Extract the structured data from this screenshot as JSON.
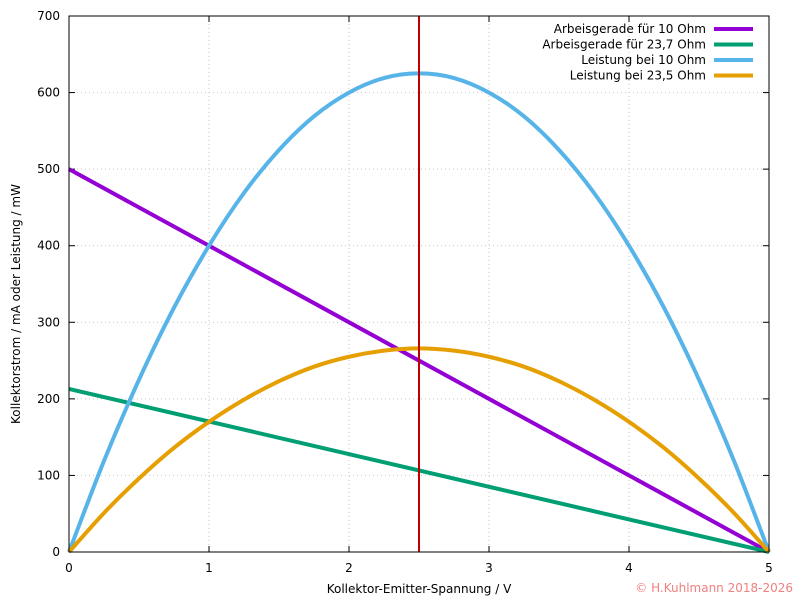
{
  "chart_data": {
    "type": "line",
    "xlabel": "Kollektor-Emitter-Spannung / V",
    "ylabel": "Kollektorstrom / mA oder Leistung / mW",
    "xlim": [
      0,
      5
    ],
    "ylim": [
      0,
      700
    ],
    "x_ticks": [
      "0",
      "1",
      "2",
      "3",
      "4",
      "5"
    ],
    "y_ticks": [
      "0",
      "100",
      "200",
      "300",
      "400",
      "500",
      "600",
      "700"
    ],
    "grid": true,
    "legend_position": "top-right",
    "vertical_marker": {
      "x": 2.5,
      "color": "#c00000"
    },
    "series": [
      {
        "name": "Arbeisgerade für 10 Ohm",
        "color": "#9400d3",
        "x": [
          0,
          5
        ],
        "y": [
          500,
          0
        ]
      },
      {
        "name": "Arbeisgerade für 23,7 Ohm",
        "color": "#009e73",
        "x": [
          0,
          5
        ],
        "y": [
          213,
          0
        ]
      },
      {
        "name": "Leistung bei 10 Ohm",
        "color": "#56b4e9",
        "x": [
          0,
          0.25,
          0.5,
          0.75,
          1,
          1.25,
          1.5,
          1.75,
          2,
          2.25,
          2.5,
          2.75,
          3,
          3.25,
          3.5,
          3.75,
          4,
          4.25,
          4.5,
          4.75,
          5
        ],
        "y": [
          0,
          119,
          225,
          319,
          400,
          469,
          525,
          569,
          600,
          619,
          625,
          619,
          600,
          569,
          525,
          469,
          400,
          319,
          225,
          119,
          0
        ]
      },
      {
        "name": "Leistung bei 23,5 Ohm",
        "color": "#e69f00",
        "x": [
          0,
          0.25,
          0.5,
          0.75,
          1,
          1.25,
          1.5,
          1.75,
          2,
          2.25,
          2.5,
          2.75,
          3,
          3.25,
          3.5,
          3.75,
          4,
          4.25,
          4.5,
          4.75,
          5
        ],
        "y": [
          0,
          51,
          96,
          136,
          170,
          199,
          223,
          242,
          255,
          263,
          266,
          263,
          255,
          242,
          223,
          199,
          170,
          136,
          96,
          51,
          0
        ]
      }
    ]
  },
  "copyright": {
    "text": "© H.Kuhlmann 2018-2026",
    "color": "#f08080"
  }
}
